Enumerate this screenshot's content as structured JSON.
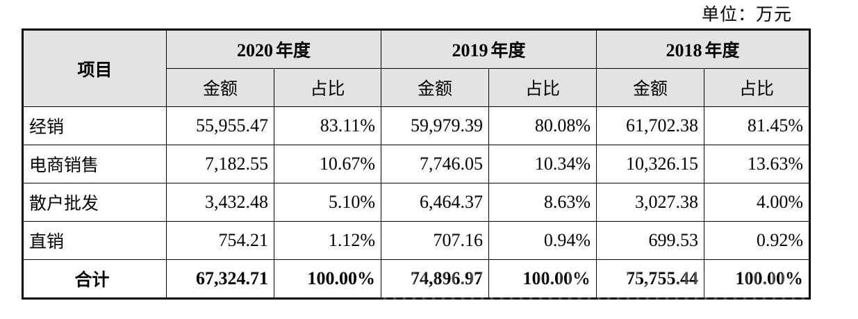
{
  "unit_label": "单位：万元",
  "table": {
    "header": {
      "item": "项目",
      "years": [
        {
          "year": "2020",
          "suffix": "年度"
        },
        {
          "year": "2019",
          "suffix": "年度"
        },
        {
          "year": "2018",
          "suffix": "年度"
        }
      ],
      "amount": "金额",
      "ratio": "占比"
    },
    "rows": [
      {
        "item": "经销",
        "values": [
          "55,955.47",
          "83.11%",
          "59,979.39",
          "80.08%",
          "61,702.38",
          "81.45%"
        ]
      },
      {
        "item": "电商销售",
        "values": [
          "7,182.55",
          "10.67%",
          "7,746.05",
          "10.34%",
          "10,326.15",
          "13.63%"
        ]
      },
      {
        "item": "散户批发",
        "values": [
          "3,432.48",
          "5.10%",
          "6,464.37",
          "8.63%",
          "3,027.38",
          "4.00%"
        ]
      },
      {
        "item": "直销",
        "values": [
          "754.21",
          "1.12%",
          "707.16",
          "0.94%",
          "699.53",
          "0.92%"
        ]
      }
    ],
    "total": {
      "item": "合计",
      "values": [
        "67,324.71",
        "100.00%",
        "74,896.97",
        "100.00%",
        "75,755.44",
        "100.00%"
      ]
    }
  }
}
